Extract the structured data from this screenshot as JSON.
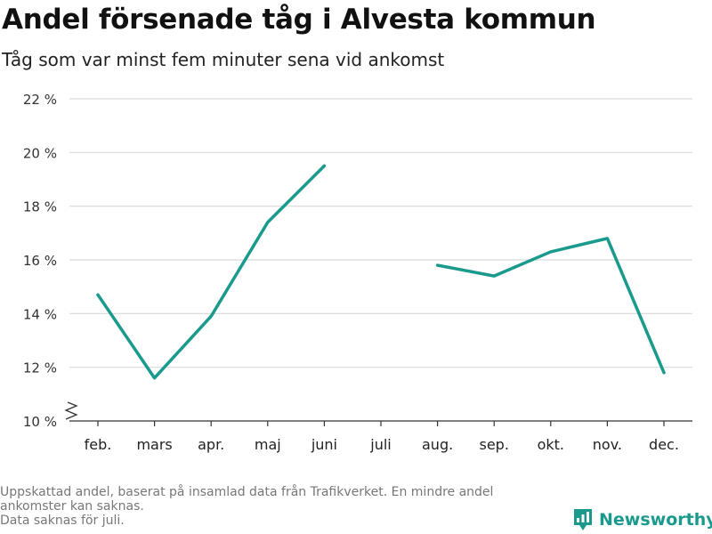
{
  "title": "Andel försenade tåg i Alvesta kommun",
  "subtitle": "Tåg som var minst fem minuter sena vid ankomst",
  "footnote": {
    "line1": "Uppskattad andel, baserat på insamlad data från Trafikverket. En mindre andel",
    "line2": "ankomster kan saknas.",
    "line3": "Data saknas för juli."
  },
  "brand": {
    "name": "Newsworthy",
    "color": "#1a9a8c"
  },
  "chart_data": {
    "type": "line",
    "categories": [
      "feb.",
      "mars",
      "apr.",
      "maj",
      "juni",
      "juli",
      "aug.",
      "sep.",
      "okt.",
      "nov.",
      "dec."
    ],
    "series": [
      {
        "values": [
          14.7,
          11.6,
          13.9,
          17.4,
          19.5,
          null,
          15.8,
          15.4,
          16.3,
          16.8,
          11.8
        ],
        "color": "#1a9a8c"
      }
    ],
    "yticks": [
      10,
      12,
      14,
      16,
      18,
      20,
      22
    ],
    "ytick_labels": [
      "10 %",
      "12 %",
      "14 %",
      "16 %",
      "18 %",
      "20 %",
      "22 %"
    ],
    "ylim": [
      10,
      22
    ],
    "y_axis_break": true,
    "grid": true,
    "grid_color": "#d9d9d9",
    "xlabel": "",
    "ylabel": ""
  }
}
